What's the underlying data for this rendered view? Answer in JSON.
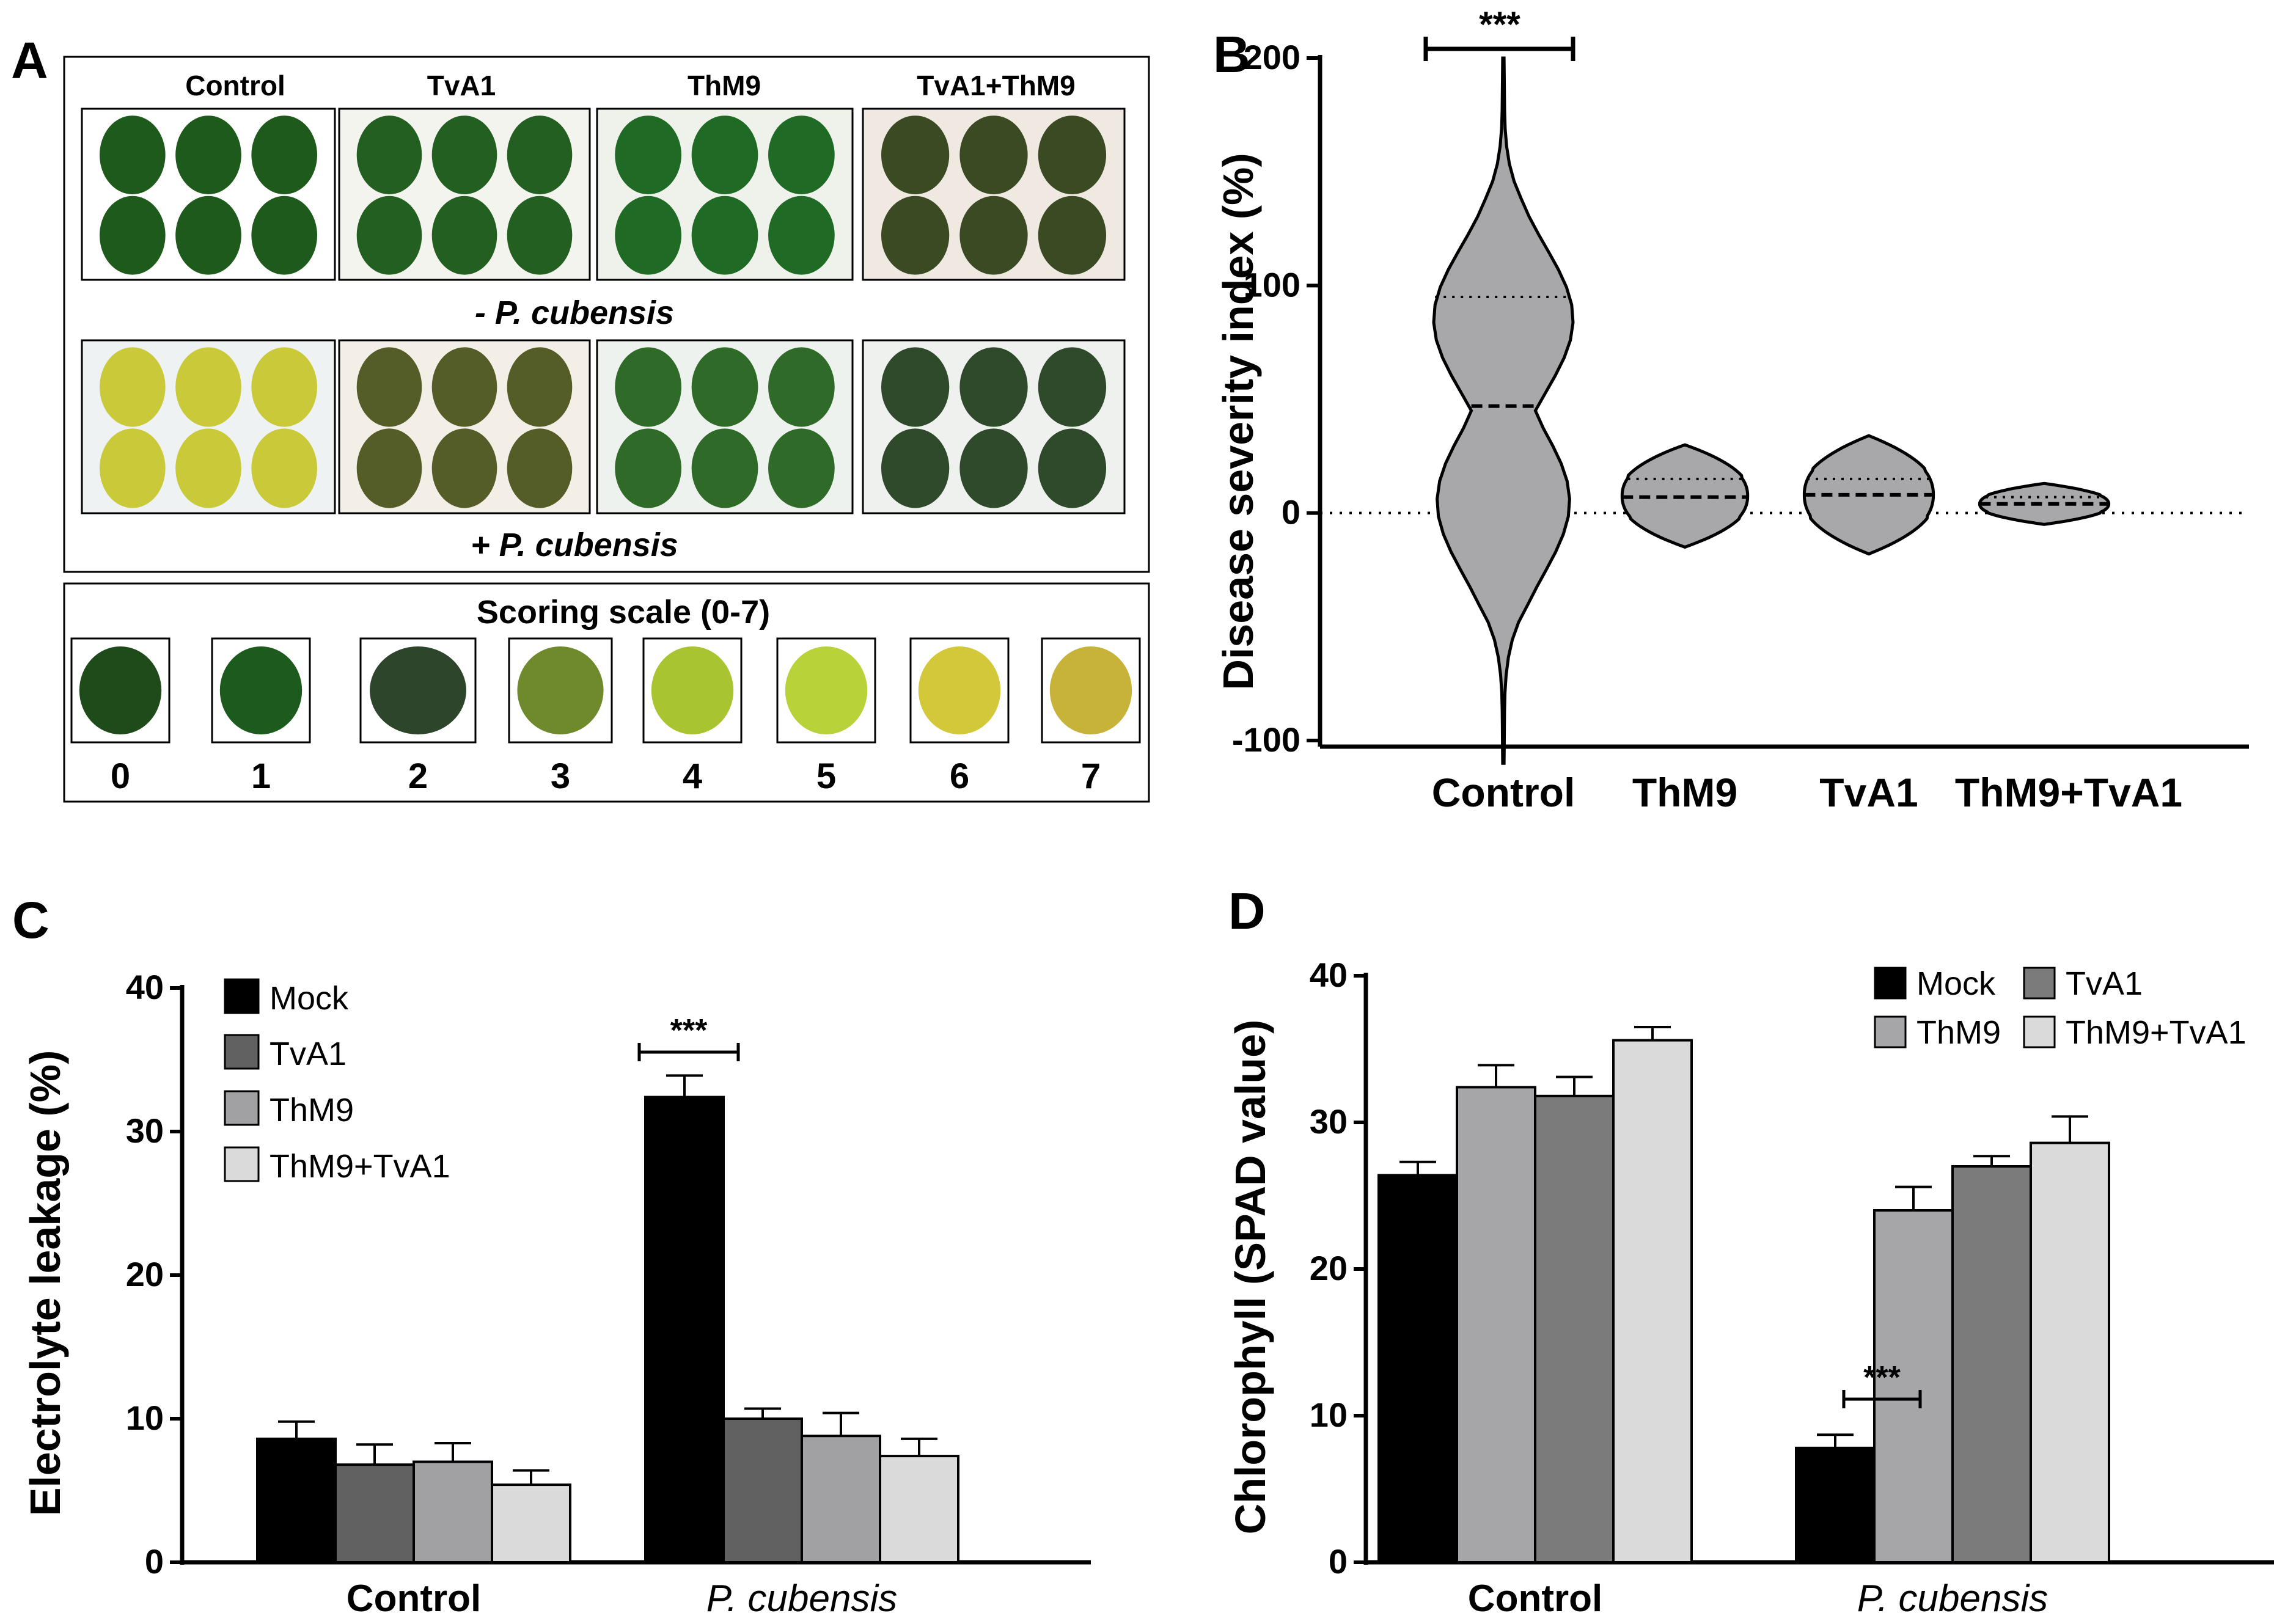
{
  "panel_labels": {
    "a": "A",
    "b": "B",
    "c": "C",
    "d": "D"
  },
  "colors": {
    "mock": "#000000",
    "tva1": "#a1a1a4",
    "thm9_c": "#616161",
    "thm9_d": "#a6a6a9",
    "tva1_d": "#7b7b7b",
    "thm9tva1": "#dadada",
    "violin": "#a8a8ab"
  },
  "panel_a": {
    "column_headers": [
      "Control",
      "TvA1",
      "ThM9",
      "TvA1+ThM9"
    ],
    "row_labels": [
      "- P. cubensis",
      "+ P. cubensis"
    ],
    "scale_title": "Scoring scale (0-7)",
    "scale_values": [
      "0",
      "1",
      "2",
      "3",
      "4",
      "5",
      "6",
      "7"
    ],
    "scale_leaf_colors": [
      "#1f4a1a",
      "#1d5a1e",
      "#2c452b",
      "#6e8a2c",
      "#a9c431",
      "#b8d23a",
      "#d3c83a",
      "#c7b23a"
    ],
    "leaf_colors_minus": [
      "#1e5a1c",
      "#225f20",
      "#1f6a24",
      "#3a4a23"
    ],
    "leaf_colors_plus": [
      "#c9c93a",
      "#545c28",
      "#2f6a28",
      "#2e4a2a"
    ]
  },
  "chart_data": [
    {
      "id": "B",
      "type": "violin",
      "ylabel": "Disease severity index (%)",
      "xlabel": "",
      "ylim": [
        -100,
        200
      ],
      "yticks": [
        "-100",
        "0",
        "100",
        "200"
      ],
      "categories": [
        "Control",
        "ThM9",
        "TvA1",
        "ThM9+TvA1"
      ],
      "median": [
        47,
        7,
        8,
        4
      ],
      "quartile_upper": [
        95,
        15,
        15,
        7
      ],
      "quartile_lower": [
        0,
        0,
        0,
        0
      ],
      "range_max": [
        200,
        30,
        34,
        13
      ],
      "range_min": [
        -110,
        -15,
        -18,
        -5
      ],
      "zero_line": true,
      "significance": "***"
    },
    {
      "id": "C",
      "type": "bar",
      "ylabel": "Electrolyte leakage (%)",
      "ylim": [
        0,
        40
      ],
      "yticks": [
        "0",
        "10",
        "20",
        "30",
        "40"
      ],
      "categories": [
        "Control",
        "P. cubensis"
      ],
      "series": [
        {
          "name": "Mock",
          "values": [
            8.6,
            32.4
          ],
          "errors": [
            1.2,
            1.5
          ]
        },
        {
          "name": "TvA1",
          "values": [
            6.8,
            10.0
          ],
          "errors": [
            1.4,
            0.7
          ]
        },
        {
          "name": "ThM9",
          "values": [
            7.0,
            8.8
          ],
          "errors": [
            1.3,
            1.6
          ]
        },
        {
          "name": "ThM9+TvA1",
          "values": [
            5.4,
            7.4
          ],
          "errors": [
            1.0,
            1.2
          ]
        }
      ],
      "significance": "***"
    },
    {
      "id": "D",
      "type": "bar",
      "ylabel": "Chlorophyll (SPAD value)",
      "ylim": [
        0,
        40
      ],
      "yticks": [
        "0",
        "10",
        "20",
        "30",
        "40"
      ],
      "categories": [
        "Control",
        "P. cubensis"
      ],
      "series": [
        {
          "name": "Mock",
          "values": [
            26.4,
            7.8
          ],
          "errors": [
            0.9,
            0.9
          ]
        },
        {
          "name": "ThM9",
          "values": [
            32.4,
            24.0
          ],
          "errors": [
            1.5,
            1.6
          ]
        },
        {
          "name": "TvA1",
          "values": [
            31.8,
            27.0
          ],
          "errors": [
            1.3,
            0.7
          ]
        },
        {
          "name": "ThM9+TvA1",
          "values": [
            35.6,
            28.6
          ],
          "errors": [
            0.9,
            1.8
          ]
        }
      ],
      "significance": "***"
    }
  ]
}
